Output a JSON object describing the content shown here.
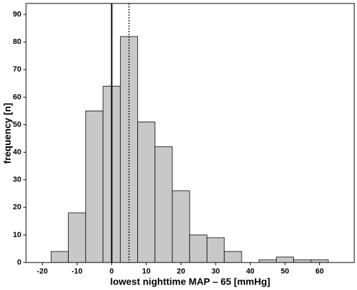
{
  "chart_data": {
    "type": "histogram",
    "xlabel": "lowest nighttime MAP – 65 [mmHg]",
    "ylabel": "frequency [n]",
    "bins": [
      -17.5,
      -12.5,
      -7.5,
      -2.5,
      2.5,
      7.5,
      12.5,
      17.5,
      22.5,
      27.5,
      32.5,
      37.5,
      42.5,
      47.5,
      52.5,
      57.5,
      62.5
    ],
    "values": [
      4,
      18,
      55,
      64,
      82,
      51,
      42,
      26,
      10,
      9,
      4,
      0,
      1,
      2,
      1,
      1
    ],
    "color": "#c8c8c8",
    "xlim": [
      -24.7,
      70
    ],
    "xticks": [
      -20,
      -10,
      0,
      10,
      20,
      30,
      40,
      50,
      60
    ],
    "ylim": [
      0,
      94
    ],
    "yticks": [
      0,
      10,
      20,
      30,
      40,
      50,
      60,
      70,
      80,
      90
    ],
    "reference_lines": [
      {
        "x": 0,
        "style": "solid"
      },
      {
        "x": 5,
        "style": "dotted"
      }
    ]
  }
}
